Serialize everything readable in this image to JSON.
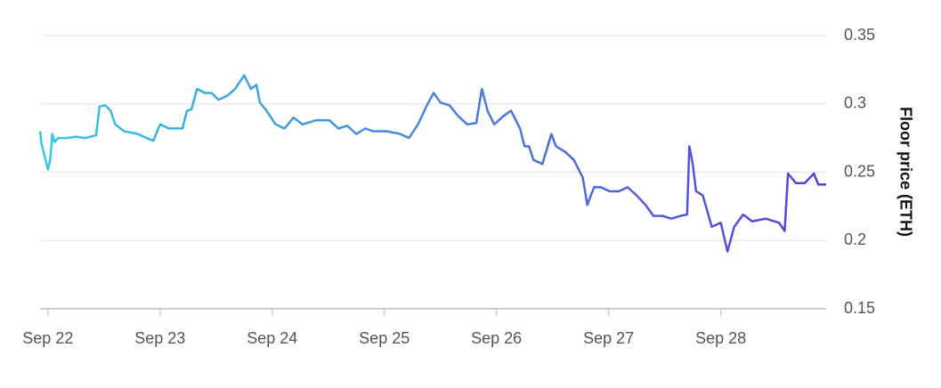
{
  "chart_data": {
    "type": "line",
    "y_label": "Floor price (ETH)",
    "x": [
      21.93,
      21.94,
      21.97,
      22.0,
      22.02,
      22.04,
      22.06,
      22.09,
      22.17,
      22.25,
      22.33,
      22.43,
      22.46,
      22.51,
      22.56,
      22.6,
      22.68,
      22.8,
      22.88,
      22.94,
      23.0,
      23.08,
      23.2,
      23.24,
      23.28,
      23.33,
      23.4,
      23.46,
      23.52,
      23.6,
      23.67,
      23.75,
      23.81,
      23.86,
      23.89,
      23.95,
      24.03,
      24.11,
      24.19,
      24.27,
      24.39,
      24.51,
      24.59,
      24.67,
      24.75,
      24.83,
      24.9,
      25.02,
      25.14,
      25.22,
      25.3,
      25.38,
      25.44,
      25.5,
      25.58,
      25.66,
      25.74,
      25.82,
      25.87,
      25.92,
      25.98,
      26.06,
      26.13,
      26.21,
      26.25,
      26.29,
      26.33,
      26.41,
      26.49,
      26.53,
      26.61,
      26.69,
      26.77,
      26.81,
      26.87,
      26.93,
      27.01,
      27.09,
      27.17,
      27.25,
      27.33,
      27.4,
      27.48,
      27.56,
      27.64,
      27.7,
      27.72,
      27.75,
      27.78,
      27.84,
      27.92,
      28.0,
      28.06,
      28.12,
      28.2,
      28.28,
      28.4,
      28.52,
      28.57,
      28.6,
      28.67,
      28.75,
      28.83,
      28.87,
      28.94
    ],
    "series": [
      {
        "gradient": [
          "#33c8e2",
          "#5a3edb"
        ],
        "values": [
          0.28,
          0.272,
          0.262,
          0.252,
          0.259,
          0.278,
          0.272,
          0.275,
          0.275,
          0.276,
          0.275,
          0.277,
          0.298,
          0.299,
          0.295,
          0.285,
          0.28,
          0.278,
          0.275,
          0.273,
          0.285,
          0.282,
          0.282,
          0.295,
          0.296,
          0.311,
          0.308,
          0.308,
          0.303,
          0.306,
          0.311,
          0.321,
          0.311,
          0.314,
          0.301,
          0.295,
          0.285,
          0.282,
          0.29,
          0.285,
          0.288,
          0.288,
          0.282,
          0.284,
          0.278,
          0.282,
          0.28,
          0.28,
          0.278,
          0.275,
          0.285,
          0.299,
          0.308,
          0.301,
          0.299,
          0.291,
          0.285,
          0.286,
          0.311,
          0.295,
          0.285,
          0.291,
          0.295,
          0.282,
          0.269,
          0.269,
          0.259,
          0.256,
          0.278,
          0.269,
          0.265,
          0.259,
          0.246,
          0.226,
          0.239,
          0.239,
          0.236,
          0.236,
          0.239,
          0.233,
          0.226,
          0.218,
          0.218,
          0.216,
          0.218,
          0.219,
          0.269,
          0.256,
          0.236,
          0.233,
          0.21,
          0.213,
          0.192,
          0.21,
          0.219,
          0.214,
          0.216,
          0.213,
          0.207,
          0.249,
          0.242,
          0.242,
          0.249,
          0.241,
          0.241
        ]
      }
    ],
    "xlim": [
      21.93,
      28.94
    ],
    "xticks": [
      {
        "value": 22,
        "label": "Sep 22"
      },
      {
        "value": 23,
        "label": "Sep 23"
      },
      {
        "value": 24,
        "label": "Sep 24"
      },
      {
        "value": 25,
        "label": "Sep 25"
      },
      {
        "value": 26,
        "label": "Sep 26"
      },
      {
        "value": 27,
        "label": "Sep 27"
      },
      {
        "value": 28,
        "label": "Sep 28"
      }
    ],
    "ylim": [
      0.15,
      0.35
    ],
    "yticks": [
      0.15,
      0.2,
      0.25,
      0.3,
      0.35
    ],
    "grid": true
  }
}
